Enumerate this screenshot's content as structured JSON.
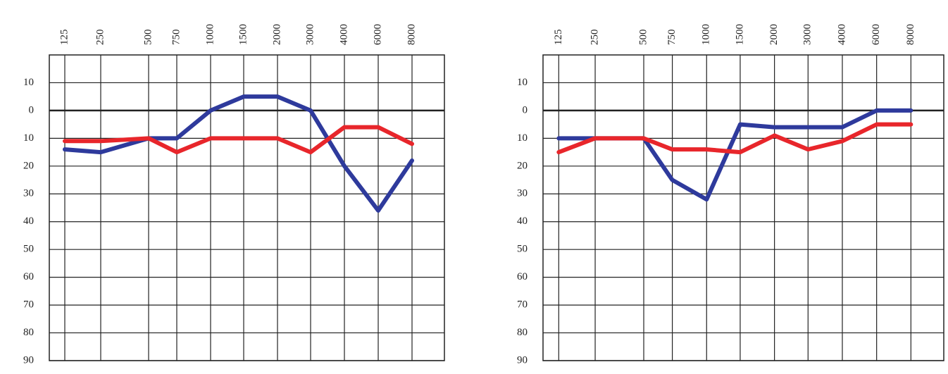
{
  "chart_data": [
    {
      "type": "line",
      "categories": [
        "125",
        "250",
        "500",
        "750",
        "1000",
        "1500",
        "2000",
        "3000",
        "4000",
        "6000",
        "8000"
      ],
      "series": [
        {
          "color": "#2e3a9c",
          "values": [
            14,
            15,
            10,
            10,
            0,
            -5,
            -5,
            0,
            20,
            36,
            18
          ]
        },
        {
          "color": "#e8262b",
          "values": [
            11,
            11,
            10,
            15,
            10,
            10,
            10,
            15,
            6,
            6,
            12
          ]
        }
      ],
      "ylim": [
        -20,
        90
      ],
      "y_inverted": true,
      "yticks": [
        {
          "value": -10,
          "label": "10"
        },
        0,
        10,
        20,
        30,
        40,
        50,
        60,
        70,
        80,
        90
      ],
      "grid": true
    },
    {
      "type": "line",
      "categories": [
        "125",
        "250",
        "500",
        "750",
        "1000",
        "1500",
        "2000",
        "3000",
        "4000",
        "6000",
        "8000"
      ],
      "series": [
        {
          "color": "#2e3a9c",
          "values": [
            10,
            10,
            10,
            25,
            32,
            5,
            6,
            6,
            6,
            0,
            0
          ]
        },
        {
          "color": "#e8262b",
          "values": [
            15,
            10,
            10,
            14,
            14,
            15,
            9,
            14,
            11,
            5,
            5
          ]
        }
      ],
      "ylim": [
        -20,
        90
      ],
      "y_inverted": true,
      "yticks": [
        {
          "value": -10,
          "label": "10"
        },
        0,
        10,
        20,
        30,
        40,
        50,
        60,
        70,
        80,
        90
      ],
      "grid": true
    }
  ]
}
